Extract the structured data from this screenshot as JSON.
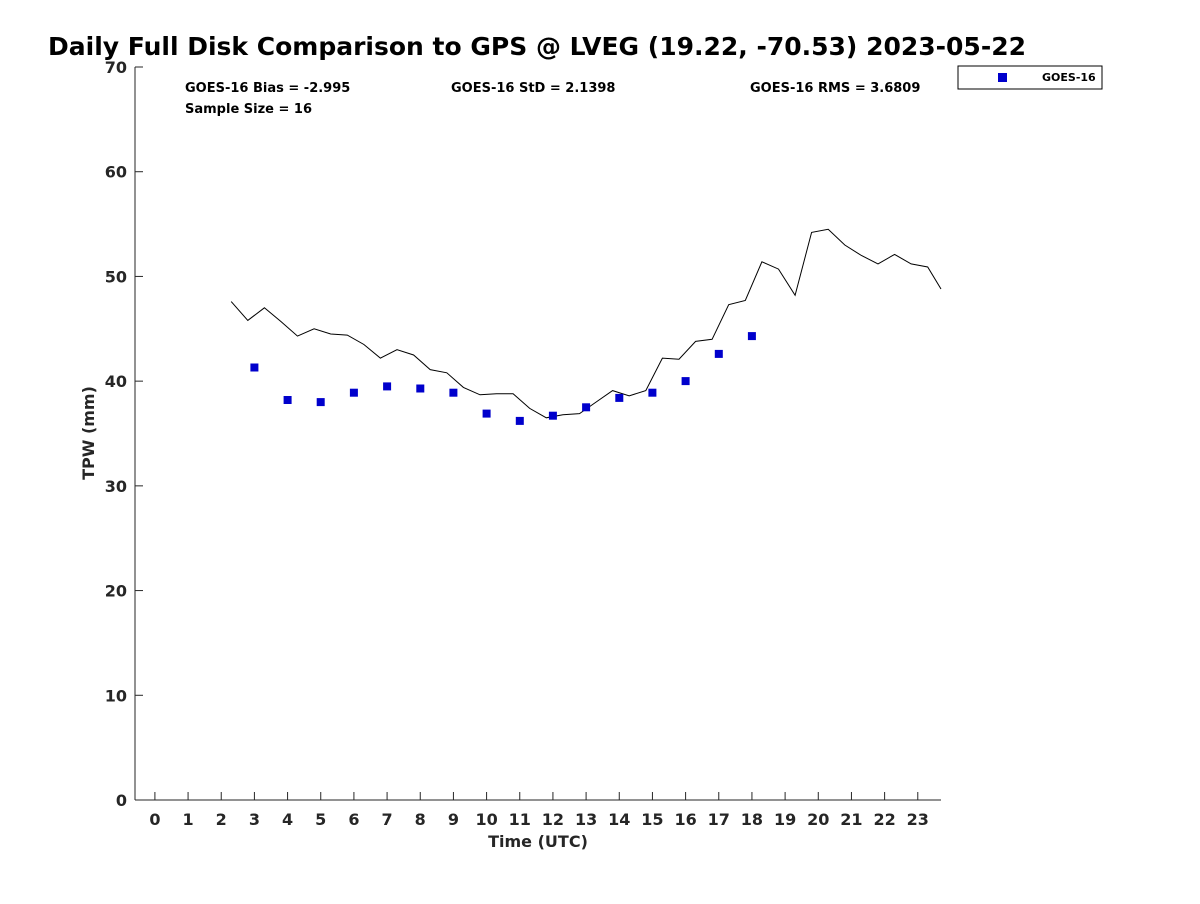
{
  "chart_data": {
    "type": "scatter",
    "title": "Daily Full Disk Comparison to GPS @ LVEG (19.22, -70.53) 2023-05-22",
    "xlabel": "Time (UTC)",
    "ylabel": "TPW (mm)",
    "xlim": [
      -0.6,
      23.7
    ],
    "ylim": [
      0,
      70
    ],
    "x_ticks": [
      0,
      1,
      2,
      3,
      4,
      5,
      6,
      7,
      8,
      9,
      10,
      11,
      12,
      13,
      14,
      15,
      16,
      17,
      18,
      19,
      20,
      21,
      22,
      23
    ],
    "y_ticks": [
      0,
      10,
      20,
      30,
      40,
      50,
      60,
      70
    ],
    "grid": false,
    "legend": {
      "placement": "top-right-outside",
      "entries": [
        "GOES-16"
      ]
    },
    "stats": {
      "bias": "GOES-16 Bias = -2.995",
      "std": "GOES-16 StD = 2.1398",
      "rms": "GOES-16 RMS = 3.6809",
      "sample": "Sample Size = 16"
    },
    "series": [
      {
        "name": "GOES-16",
        "kind": "scatter",
        "color": "#0000cc",
        "x": [
          3,
          4,
          5,
          6,
          7,
          8,
          9,
          10,
          11,
          12,
          13,
          14,
          15,
          16,
          17,
          18
        ],
        "y": [
          41.3,
          38.2,
          38.0,
          38.9,
          39.5,
          39.3,
          38.9,
          36.9,
          36.2,
          36.7,
          37.5,
          38.4,
          38.9,
          40.0,
          42.6,
          44.3
        ]
      },
      {
        "kind": "line",
        "color": "#000000",
        "x": [
          2.3,
          2.8,
          3.3,
          3.8,
          4.3,
          4.8,
          5.3,
          5.8,
          6.3,
          6.8,
          7.3,
          7.8,
          8.3,
          8.8,
          9.3,
          9.8,
          10.3,
          10.8,
          11.3,
          11.8,
          12.3,
          12.8,
          13.3,
          13.8,
          14.3,
          14.8,
          15.3,
          15.8,
          16.3,
          16.8,
          17.3,
          17.8,
          18.3,
          18.8,
          19.3,
          19.8,
          20.3,
          20.8,
          21.3,
          21.8,
          22.3,
          22.8,
          23.3,
          23.7
        ],
        "y": [
          47.6,
          45.8,
          47.0,
          45.7,
          44.3,
          45.0,
          44.5,
          44.4,
          43.5,
          42.2,
          43.0,
          42.5,
          41.1,
          40.8,
          39.4,
          38.7,
          38.8,
          38.8,
          37.4,
          36.5,
          36.8,
          36.9,
          38.0,
          39.1,
          38.6,
          39.1,
          42.2,
          42.1,
          43.8,
          44.0,
          47.3,
          47.7,
          51.4,
          50.7,
          48.2,
          54.2,
          54.5,
          53.0,
          52.0,
          51.2,
          52.1,
          51.2,
          50.9,
          48.8
        ]
      }
    ]
  }
}
